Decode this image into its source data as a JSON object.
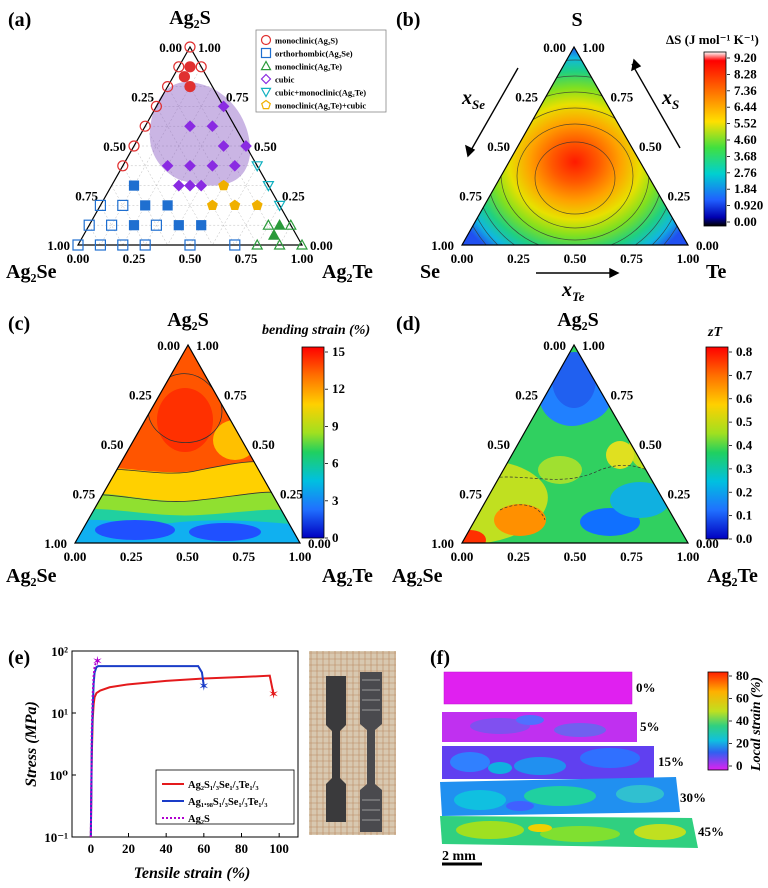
{
  "panels": {
    "a": {
      "label": "(a)",
      "top": "Ag₂S",
      "left": "Ag₂Se",
      "right": "Ag₂Te"
    },
    "b": {
      "label": "(b)",
      "top": "S",
      "left": "Se",
      "right": "Te",
      "x_se": "x",
      "x_se_sub": "Se",
      "x_s": "x",
      "x_s_sub": "S",
      "x_te": "x",
      "x_te_sub": "Te",
      "colorbar_title": "ΔS (J mol⁻¹ K⁻¹)"
    },
    "c": {
      "label": "(c)",
      "top": "Ag₂S",
      "left": "Ag₂Se",
      "right": "Ag₂Te",
      "colorbar_title": "bending strain (%)"
    },
    "d": {
      "label": "(d)",
      "top": "Ag₂S",
      "left": "Ag₂Se",
      "right": "Ag₂Te",
      "colorbar_title": "zT"
    },
    "e": {
      "label": "(e)"
    },
    "f": {
      "label": "(f)",
      "scale_bar": "2 mm",
      "colorbar_title": "Local strain (%)"
    }
  },
  "ternary_ticks": {
    "left_side": [
      "0.00",
      "0.25",
      "0.50",
      "0.75",
      "1.00"
    ],
    "right_side": [
      "1.00",
      "0.75",
      "0.50",
      "0.25",
      "0.00"
    ],
    "bottom": [
      "0.00",
      "0.25",
      "0.50",
      "0.75",
      "1.00"
    ]
  },
  "legend_a": [
    {
      "label": "monoclinic(Ag₂S)",
      "marker": "circle-open",
      "color": "#e03030"
    },
    {
      "label": "orthorhombic(Ag₂Se)",
      "marker": "square-open",
      "color": "#1f6fd0"
    },
    {
      "label": "monoclinic(Ag₂Te)",
      "marker": "triangle-open",
      "color": "#2a9a3a"
    },
    {
      "label": "cubic",
      "marker": "diamond-open",
      "color": "#8a2be2"
    },
    {
      "label": "cubic+monoclinic(Ag₂Te)",
      "marker": "triangle-down-open",
      "color": "#10b0c0"
    },
    {
      "label": "monoclinic(Ag₂Te)+cubic",
      "marker": "pentagon-open",
      "color": "#f0b000"
    }
  ],
  "colorbars": {
    "b": {
      "ticks": [
        "9.20",
        "8.28",
        "7.36",
        "6.44",
        "5.52",
        "4.60",
        "3.68",
        "2.76",
        "1.84",
        "0.920",
        "0.00"
      ]
    },
    "c": {
      "ticks": [
        "15",
        "12",
        "9",
        "6",
        "3",
        "0"
      ]
    },
    "d": {
      "ticks": [
        "0.8",
        "0.7",
        "0.6",
        "0.5",
        "0.4",
        "0.3",
        "0.2",
        "0.1",
        "0.0"
      ]
    },
    "f": {
      "ticks": [
        "80",
        "60",
        "40",
        "20",
        "0"
      ]
    }
  },
  "strain_labels": [
    "0%",
    "5%",
    "15%",
    "30%",
    "45%"
  ],
  "chart_data": [
    {
      "type": "scatter",
      "panel": "a",
      "subtitle": "ternary phase map",
      "series": [
        {
          "name": "monoclinic(Ag₂S)",
          "points_s_se_te": [
            [
              1.0,
              0,
              0
            ],
            [
              0.9,
              0.1,
              0
            ],
            [
              0.9,
              0,
              0.1
            ],
            [
              0.8,
              0.2,
              0
            ],
            [
              0.7,
              0.3,
              0
            ],
            [
              0.6,
              0.4,
              0
            ],
            [
              0.5,
              0.5,
              0
            ],
            [
              0.4,
              0.6,
              0
            ]
          ]
        },
        {
          "name": "orthorhombic(Ag₂Se)",
          "points_s_se_te": [
            [
              0,
              1.0,
              0
            ],
            [
              0.1,
              0.9,
              0
            ],
            [
              0.2,
              0.8,
              0
            ],
            [
              0,
              0.9,
              0.1
            ],
            [
              0,
              0.8,
              0.2
            ],
            [
              0.1,
              0.8,
              0.1
            ],
            [
              0.2,
              0.7,
              0.1
            ],
            [
              0,
              0.7,
              0.3
            ],
            [
              0.1,
              0.6,
              0.3
            ],
            [
              0,
              0.5,
              0.5
            ],
            [
              0,
              0.3,
              0.7
            ]
          ]
        },
        {
          "name": "monoclinic(Ag₂Te)",
          "points_s_se_te": [
            [
              0,
              0,
              1.0
            ],
            [
              0.1,
              0,
              0.9
            ],
            [
              0,
              0.1,
              0.9
            ],
            [
              0,
              0.2,
              0.8
            ],
            [
              0.1,
              0.1,
              0.8
            ]
          ]
        },
        {
          "name": "cubic",
          "points_s_se_te": [
            [
              0.7,
              0,
              0.3
            ],
            [
              0.6,
              0.2,
              0.2
            ],
            [
              0.6,
              0.1,
              0.3
            ],
            [
              0.5,
              0.1,
              0.4
            ],
            [
              0.4,
              0.2,
              0.4
            ],
            [
              0.4,
              0.3,
              0.3
            ],
            [
              0.4,
              0.4,
              0.2
            ],
            [
              0.3,
              0.4,
              0.3
            ],
            [
              0.3,
              0.3,
              0.4
            ],
            [
              0.4,
              0.1,
              0.5
            ],
            [
              0.5,
              0,
              0.5
            ],
            [
              0.3,
              0.35,
              0.35
            ]
          ]
        },
        {
          "name": "cubic+monoclinic(Ag₂Te)",
          "points_s_se_te": [
            [
              0.4,
              0,
              0.6
            ],
            [
              0.3,
              0,
              0.7
            ],
            [
              0.2,
              0,
              0.8
            ]
          ]
        },
        {
          "name": "monoclinic(Ag₂Te)+cubic",
          "points_s_se_te": [
            [
              0.3,
              0.2,
              0.5
            ],
            [
              0.2,
              0.3,
              0.5
            ],
            [
              0.2,
              0.2,
              0.6
            ],
            [
              0.2,
              0.1,
              0.7
            ]
          ]
        }
      ]
    },
    {
      "type": "heatmap",
      "panel": "b",
      "zlabel": "ΔS (J mol⁻¹ K⁻¹)",
      "zlim": [
        0,
        9.2
      ],
      "peak_s_se_te": [
        0.333,
        0.333,
        0.333
      ]
    },
    {
      "type": "heatmap",
      "panel": "c",
      "zlabel": "bending strain (%)",
      "zlim": [
        0,
        15
      ]
    },
    {
      "type": "heatmap",
      "panel": "d",
      "zlabel": "zT",
      "zlim": [
        0,
        0.8
      ]
    },
    {
      "type": "line",
      "panel": "e",
      "xlabel": "Tensile strain (%)",
      "ylabel": "Stress (MPa)",
      "xlim": [
        -10,
        110
      ],
      "ylim": [
        0.1,
        100
      ],
      "yscale": "log",
      "xticks": [
        "0",
        "20",
        "40",
        "60",
        "80",
        "100"
      ],
      "yticks": [
        "10⁻¹",
        "10⁰",
        "10¹",
        "10²"
      ],
      "legend_placement": "lower-center",
      "series": [
        {
          "name": "Ag₂S₁/₃Se₁/₃Te₁/₃",
          "color": "#e41a1c",
          "x": [
            0,
            0.5,
            1,
            1.5,
            2,
            3,
            5,
            10,
            20,
            40,
            60,
            80,
            95,
            97
          ],
          "y": [
            0.1,
            2,
            8,
            14,
            18,
            21,
            23,
            26,
            29,
            33,
            36,
            38,
            40,
            20
          ]
        },
        {
          "name": "Ag₁.₉₈S₁/₃Se₁/₃Te₁/₃",
          "color": "#1a3cc8",
          "x": [
            0,
            0.5,
            1,
            1.5,
            2,
            3,
            4,
            10,
            30,
            50,
            57,
            59,
            60
          ],
          "y": [
            0.1,
            3,
            12,
            30,
            45,
            55,
            57,
            57,
            57,
            57,
            57,
            45,
            27
          ]
        },
        {
          "name": "Ag₂S",
          "color": "#b000d0",
          "dashed": true,
          "x": [
            0,
            0.5,
            1,
            1.5,
            2,
            2.5,
            3,
            3.5
          ],
          "y": [
            0.1,
            5,
            20,
            40,
            55,
            62,
            66,
            68
          ]
        }
      ]
    }
  ]
}
